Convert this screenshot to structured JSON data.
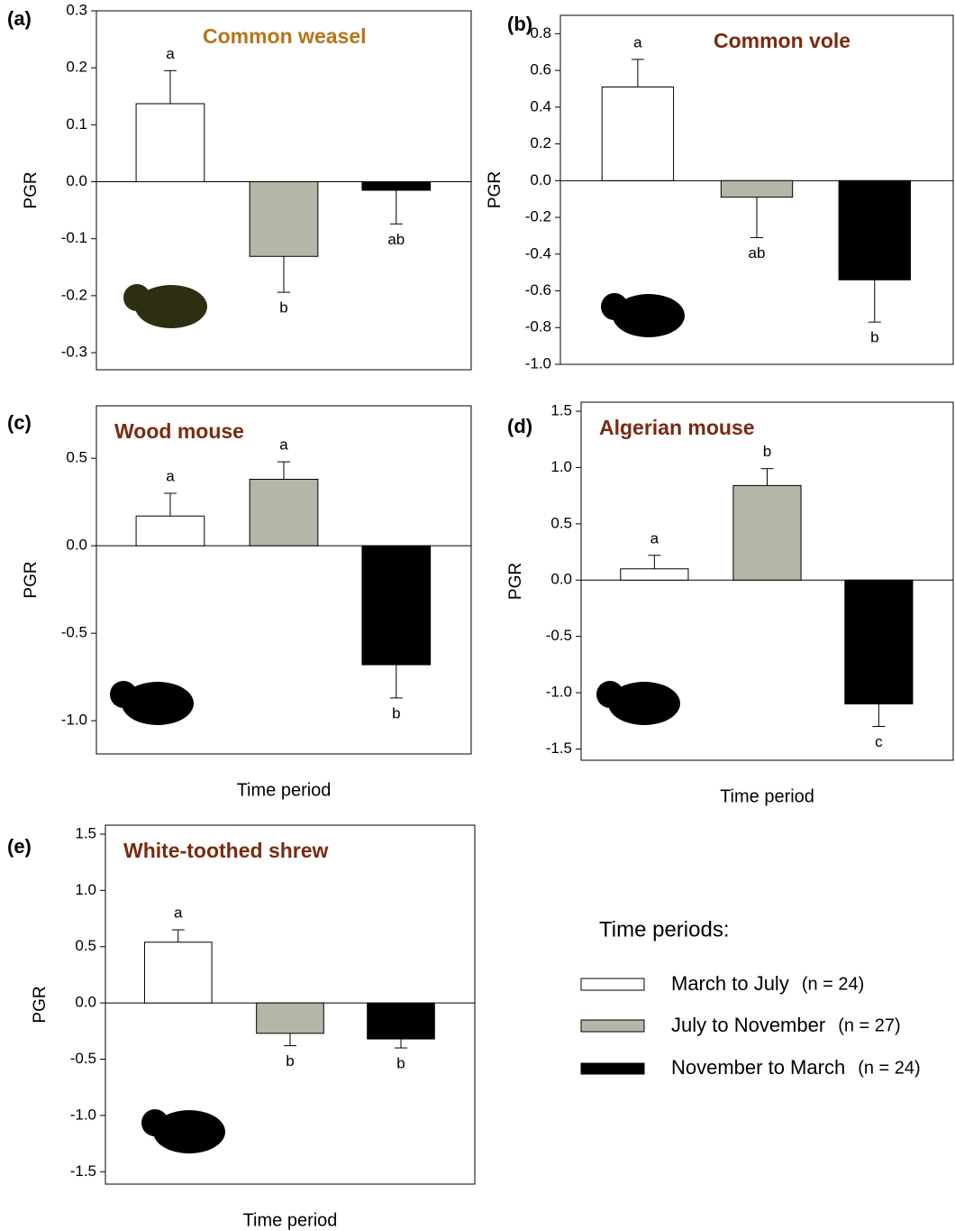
{
  "chart_data": [
    {
      "type": "bar",
      "panel": "(a)",
      "title": "Common weasel",
      "title_color": "#b8741a",
      "ylabel": "PGR",
      "values": [
        0.137,
        -0.131,
        -0.015
      ],
      "errors": [
        0.058,
        0.063,
        0.059
      ],
      "letters": [
        "a",
        "b",
        "ab"
      ],
      "ylim": [
        -0.33,
        0.3
      ],
      "yticks": [
        {
          "value": -0.3,
          "label": "-0.3"
        },
        {
          "value": -0.2,
          "label": "-0.2"
        },
        {
          "value": -0.1,
          "label": "-0.1"
        },
        {
          "value": 0,
          "label": "0.0"
        },
        0.1,
        0.2,
        0.3
      ]
    },
    {
      "type": "bar",
      "panel": "(b)",
      "title": "Common vole",
      "title_color": "#7a2a10",
      "ylabel": "PGR",
      "values": [
        0.51,
        -0.09,
        -0.54
      ],
      "errors": [
        0.15,
        0.22,
        0.23
      ],
      "letters": [
        "a",
        "ab",
        "b"
      ],
      "ylim": [
        -1.0,
        0.9
      ],
      "yticks": [
        {
          "value": -1,
          "label": "-1.0"
        },
        -0.8,
        -0.6,
        -0.4,
        -0.2,
        {
          "value": 0,
          "label": "0.0"
        },
        0.2,
        0.4,
        0.6,
        0.8
      ]
    },
    {
      "type": "bar",
      "panel": "(c)",
      "title": "Wood mouse",
      "title_color": "#7a2a10",
      "ylabel": "PGR",
      "xlabel": "Time period",
      "values": [
        0.17,
        0.38,
        -0.68
      ],
      "errors": [
        0.13,
        0.1,
        0.19
      ],
      "letters": [
        "a",
        "a",
        "b"
      ],
      "ylim": [
        -1.19,
        0.8
      ],
      "yticks": [
        {
          "value": -1,
          "label": "-1.0"
        },
        -0.5,
        {
          "value": 0,
          "label": "0.0"
        },
        0.5
      ]
    },
    {
      "type": "bar",
      "panel": "(d)",
      "title": "Algerian mouse",
      "title_color": "#7a2a10",
      "ylabel": "PGR",
      "xlabel": "Time period",
      "values": [
        0.1,
        0.84,
        -1.1
      ],
      "errors": [
        0.12,
        0.15,
        0.2
      ],
      "letters": [
        "a",
        "b",
        "c"
      ],
      "ylim": [
        -1.6,
        1.58
      ],
      "yticks": [
        -1.5,
        {
          "value": -1,
          "label": "-1.0"
        },
        -0.5,
        {
          "value": 0,
          "label": "0.0"
        },
        0.5,
        {
          "value": 1,
          "label": "1.0"
        },
        1.5
      ]
    },
    {
      "type": "bar",
      "panel": "(e)",
      "title": "White-toothed shrew",
      "title_color": "#7a2a10",
      "ylabel": "PGR",
      "xlabel": "Time period",
      "values": [
        0.54,
        -0.27,
        -0.32
      ],
      "errors": [
        0.11,
        0.11,
        0.08
      ],
      "letters": [
        "a",
        "b",
        "b"
      ],
      "ylim": [
        -1.61,
        1.58
      ],
      "yticks": [
        -1.5,
        {
          "value": -1,
          "label": "-1.0"
        },
        -0.5,
        {
          "value": 0,
          "label": "0.0"
        },
        0.5,
        {
          "value": 1,
          "label": "1.0"
        },
        1.5
      ]
    }
  ],
  "legend": {
    "title": "Time periods:",
    "entries": [
      {
        "name": "March to July",
        "n_label": "(n = 24)",
        "color": "#ffffff"
      },
      {
        "name": "July to November",
        "n_label": "(n = 27)",
        "color": "#b5b5a8"
      },
      {
        "name": "November to March",
        "n_label": "(n = 24)",
        "color": "#000000"
      }
    ]
  }
}
